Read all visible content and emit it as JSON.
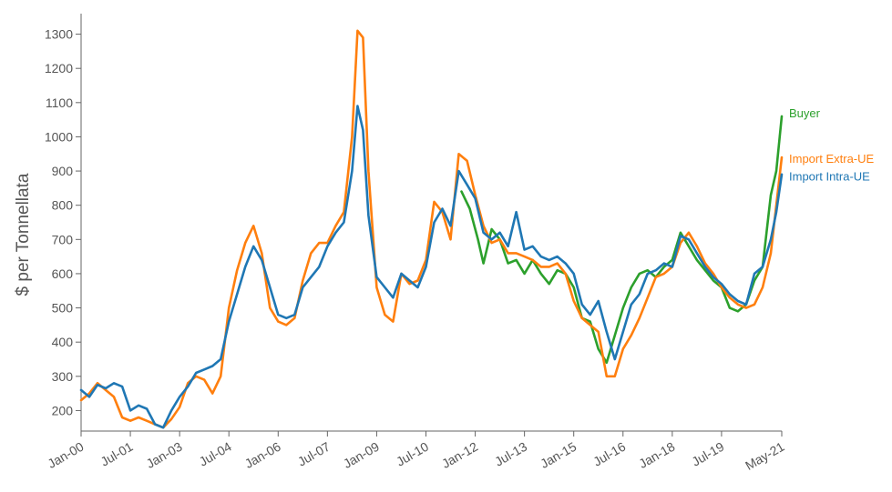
{
  "chart_data": {
    "type": "line",
    "title": "",
    "xlabel": "",
    "ylabel": "$ per Tonnellata",
    "xlim": [
      "2000-01",
      "2021-05"
    ],
    "ylim": [
      140,
      1360
    ],
    "yticks": [
      200,
      300,
      400,
      500,
      600,
      700,
      800,
      900,
      1000,
      1100,
      1200,
      1300
    ],
    "xticks": [
      {
        "label": "Jan-00",
        "date": "2000-01"
      },
      {
        "label": "Jul-01",
        "date": "2001-07"
      },
      {
        "label": "Jan-03",
        "date": "2003-01"
      },
      {
        "label": "Jul-04",
        "date": "2004-07"
      },
      {
        "label": "Jan-06",
        "date": "2006-01"
      },
      {
        "label": "Jul-07",
        "date": "2007-07"
      },
      {
        "label": "Jan-09",
        "date": "2009-01"
      },
      {
        "label": "Jul-10",
        "date": "2010-07"
      },
      {
        "label": "Jan-12",
        "date": "2012-01"
      },
      {
        "label": "Jul-13",
        "date": "2013-07"
      },
      {
        "label": "Jan-15",
        "date": "2015-01"
      },
      {
        "label": "Jul-16",
        "date": "2016-07"
      },
      {
        "label": "Jan-18",
        "date": "2018-01"
      },
      {
        "label": "Jul-19",
        "date": "2019-07"
      },
      {
        "label": "May-21",
        "date": "2021-05"
      }
    ],
    "grid": false,
    "legend": "inline-right",
    "series": [
      {
        "name": "Import Intra-UE",
        "color": "#1f77b4",
        "points": [
          [
            "2000-01",
            260
          ],
          [
            "2000-04",
            240
          ],
          [
            "2000-07",
            275
          ],
          [
            "2000-10",
            265
          ],
          [
            "2001-01",
            280
          ],
          [
            "2001-04",
            270
          ],
          [
            "2001-07",
            200
          ],
          [
            "2001-10",
            215
          ],
          [
            "2002-01",
            205
          ],
          [
            "2002-04",
            160
          ],
          [
            "2002-07",
            150
          ],
          [
            "2002-10",
            200
          ],
          [
            "2003-01",
            240
          ],
          [
            "2003-04",
            270
          ],
          [
            "2003-07",
            310
          ],
          [
            "2003-10",
            320
          ],
          [
            "2004-01",
            330
          ],
          [
            "2004-04",
            350
          ],
          [
            "2004-07",
            460
          ],
          [
            "2004-10",
            540
          ],
          [
            "2005-01",
            620
          ],
          [
            "2005-04",
            680
          ],
          [
            "2005-07",
            640
          ],
          [
            "2005-10",
            560
          ],
          [
            "2006-01",
            480
          ],
          [
            "2006-04",
            470
          ],
          [
            "2006-07",
            480
          ],
          [
            "2006-10",
            560
          ],
          [
            "2007-01",
            590
          ],
          [
            "2007-04",
            620
          ],
          [
            "2007-07",
            680
          ],
          [
            "2007-10",
            720
          ],
          [
            "2008-01",
            750
          ],
          [
            "2008-04",
            900
          ],
          [
            "2008-06",
            1090
          ],
          [
            "2008-08",
            1020
          ],
          [
            "2008-10",
            770
          ],
          [
            "2009-01",
            590
          ],
          [
            "2009-04",
            560
          ],
          [
            "2009-07",
            530
          ],
          [
            "2009-10",
            600
          ],
          [
            "2010-01",
            580
          ],
          [
            "2010-04",
            560
          ],
          [
            "2010-07",
            620
          ],
          [
            "2010-10",
            750
          ],
          [
            "2011-01",
            790
          ],
          [
            "2011-04",
            740
          ],
          [
            "2011-07",
            900
          ],
          [
            "2011-10",
            860
          ],
          [
            "2012-01",
            820
          ],
          [
            "2012-04",
            720
          ],
          [
            "2012-07",
            700
          ],
          [
            "2012-10",
            720
          ],
          [
            "2013-01",
            680
          ],
          [
            "2013-04",
            780
          ],
          [
            "2013-07",
            670
          ],
          [
            "2013-10",
            680
          ],
          [
            "2014-01",
            650
          ],
          [
            "2014-04",
            640
          ],
          [
            "2014-07",
            650
          ],
          [
            "2014-10",
            630
          ],
          [
            "2015-01",
            600
          ],
          [
            "2015-04",
            510
          ],
          [
            "2015-07",
            480
          ],
          [
            "2015-10",
            520
          ],
          [
            "2016-01",
            430
          ],
          [
            "2016-04",
            350
          ],
          [
            "2016-07",
            430
          ],
          [
            "2016-10",
            510
          ],
          [
            "2017-01",
            540
          ],
          [
            "2017-04",
            600
          ],
          [
            "2017-07",
            610
          ],
          [
            "2017-10",
            630
          ],
          [
            "2018-01",
            620
          ],
          [
            "2018-04",
            710
          ],
          [
            "2018-07",
            700
          ],
          [
            "2018-10",
            660
          ],
          [
            "2019-01",
            620
          ],
          [
            "2019-04",
            590
          ],
          [
            "2019-07",
            570
          ],
          [
            "2019-10",
            540
          ],
          [
            "2020-01",
            520
          ],
          [
            "2020-04",
            510
          ],
          [
            "2020-07",
            600
          ],
          [
            "2020-10",
            620
          ],
          [
            "2021-01",
            700
          ],
          [
            "2021-03",
            780
          ],
          [
            "2021-05",
            890
          ]
        ]
      },
      {
        "name": "Import Extra-UE",
        "color": "#ff7f0e",
        "points": [
          [
            "2000-01",
            230
          ],
          [
            "2000-04",
            250
          ],
          [
            "2000-07",
            280
          ],
          [
            "2000-10",
            260
          ],
          [
            "2001-01",
            240
          ],
          [
            "2001-04",
            180
          ],
          [
            "2001-07",
            170
          ],
          [
            "2001-10",
            180
          ],
          [
            "2002-01",
            170
          ],
          [
            "2002-04",
            160
          ],
          [
            "2002-07",
            150
          ],
          [
            "2002-10",
            175
          ],
          [
            "2003-01",
            210
          ],
          [
            "2003-04",
            280
          ],
          [
            "2003-07",
            300
          ],
          [
            "2003-10",
            290
          ],
          [
            "2004-01",
            250
          ],
          [
            "2004-04",
            300
          ],
          [
            "2004-07",
            500
          ],
          [
            "2004-10",
            610
          ],
          [
            "2005-01",
            690
          ],
          [
            "2005-04",
            740
          ],
          [
            "2005-07",
            660
          ],
          [
            "2005-10",
            500
          ],
          [
            "2006-01",
            460
          ],
          [
            "2006-04",
            450
          ],
          [
            "2006-07",
            470
          ],
          [
            "2006-10",
            580
          ],
          [
            "2007-01",
            660
          ],
          [
            "2007-04",
            690
          ],
          [
            "2007-07",
            690
          ],
          [
            "2007-10",
            740
          ],
          [
            "2008-01",
            780
          ],
          [
            "2008-04",
            1000
          ],
          [
            "2008-06",
            1310
          ],
          [
            "2008-08",
            1290
          ],
          [
            "2008-10",
            900
          ],
          [
            "2009-01",
            560
          ],
          [
            "2009-04",
            480
          ],
          [
            "2009-07",
            460
          ],
          [
            "2009-10",
            600
          ],
          [
            "2010-01",
            570
          ],
          [
            "2010-04",
            580
          ],
          [
            "2010-07",
            640
          ],
          [
            "2010-10",
            810
          ],
          [
            "2011-01",
            780
          ],
          [
            "2011-04",
            700
          ],
          [
            "2011-07",
            950
          ],
          [
            "2011-10",
            930
          ],
          [
            "2012-01",
            830
          ],
          [
            "2012-04",
            740
          ],
          [
            "2012-07",
            690
          ],
          [
            "2012-10",
            700
          ],
          [
            "2013-01",
            660
          ],
          [
            "2013-04",
            660
          ],
          [
            "2013-07",
            650
          ],
          [
            "2013-10",
            640
          ],
          [
            "2014-01",
            620
          ],
          [
            "2014-04",
            620
          ],
          [
            "2014-07",
            630
          ],
          [
            "2014-10",
            600
          ],
          [
            "2015-01",
            520
          ],
          [
            "2015-04",
            470
          ],
          [
            "2015-07",
            450
          ],
          [
            "2015-10",
            430
          ],
          [
            "2016-01",
            300
          ],
          [
            "2016-04",
            300
          ],
          [
            "2016-07",
            380
          ],
          [
            "2016-10",
            420
          ],
          [
            "2017-01",
            470
          ],
          [
            "2017-04",
            530
          ],
          [
            "2017-07",
            590
          ],
          [
            "2017-10",
            600
          ],
          [
            "2018-01",
            620
          ],
          [
            "2018-04",
            690
          ],
          [
            "2018-07",
            720
          ],
          [
            "2018-10",
            680
          ],
          [
            "2019-01",
            630
          ],
          [
            "2019-04",
            600
          ],
          [
            "2019-07",
            560
          ],
          [
            "2019-10",
            530
          ],
          [
            "2020-01",
            510
          ],
          [
            "2020-04",
            500
          ],
          [
            "2020-07",
            510
          ],
          [
            "2020-10",
            560
          ],
          [
            "2021-01",
            660
          ],
          [
            "2021-03",
            800
          ],
          [
            "2021-05",
            940
          ]
        ]
      },
      {
        "name": "Buyer",
        "color": "#2ca02c",
        "points": [
          [
            "2011-08",
            840
          ],
          [
            "2011-11",
            790
          ],
          [
            "2012-02",
            700
          ],
          [
            "2012-04",
            630
          ],
          [
            "2012-07",
            730
          ],
          [
            "2012-10",
            700
          ],
          [
            "2013-01",
            630
          ],
          [
            "2013-04",
            640
          ],
          [
            "2013-07",
            600
          ],
          [
            "2013-10",
            640
          ],
          [
            "2014-01",
            600
          ],
          [
            "2014-04",
            570
          ],
          [
            "2014-07",
            610
          ],
          [
            "2014-10",
            600
          ],
          [
            "2015-01",
            560
          ],
          [
            "2015-04",
            470
          ],
          [
            "2015-07",
            460
          ],
          [
            "2015-10",
            380
          ],
          [
            "2016-01",
            340
          ],
          [
            "2016-04",
            420
          ],
          [
            "2016-07",
            500
          ],
          [
            "2016-10",
            560
          ],
          [
            "2017-01",
            600
          ],
          [
            "2017-04",
            610
          ],
          [
            "2017-07",
            590
          ],
          [
            "2017-10",
            620
          ],
          [
            "2018-01",
            640
          ],
          [
            "2018-04",
            720
          ],
          [
            "2018-07",
            680
          ],
          [
            "2018-10",
            640
          ],
          [
            "2019-01",
            610
          ],
          [
            "2019-04",
            580
          ],
          [
            "2019-07",
            560
          ],
          [
            "2019-10",
            500
          ],
          [
            "2020-01",
            490
          ],
          [
            "2020-04",
            510
          ],
          [
            "2020-07",
            580
          ],
          [
            "2020-10",
            620
          ],
          [
            "2021-01",
            830
          ],
          [
            "2021-03",
            900
          ],
          [
            "2021-05",
            1060
          ]
        ]
      }
    ],
    "labels": [
      {
        "text": "Buyer",
        "series": 2,
        "value": 1070
      },
      {
        "text": "Import Extra-UE",
        "series": 1,
        "value": 938
      },
      {
        "text": "Import Intra-UE",
        "series": 0,
        "value": 885
      }
    ]
  }
}
